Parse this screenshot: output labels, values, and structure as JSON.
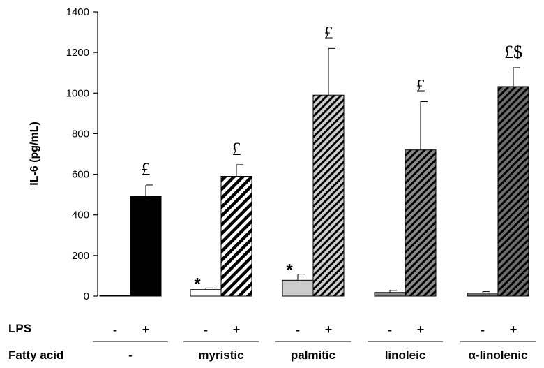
{
  "chart_data": {
    "type": "bar",
    "title": "",
    "xlabel": "",
    "ylabel": "IL-6 (pg/mL)",
    "ylim": [
      0,
      1400
    ],
    "yticks": [
      0,
      200,
      400,
      600,
      800,
      1000,
      1200,
      1400
    ],
    "grid": false,
    "row_labels": {
      "lps": "LPS",
      "fatty_acid": "Fatty acid"
    },
    "groups": [
      {
        "name": "-",
        "bars": [
          {
            "lps": "-",
            "value": 2,
            "error": 0,
            "annotation": ""
          },
          {
            "lps": "+",
            "value": 492,
            "error": 55,
            "annotation": "£"
          }
        ]
      },
      {
        "name": "myristic",
        "bars": [
          {
            "lps": "-",
            "value": 32,
            "error": 8,
            "annotation": "*"
          },
          {
            "lps": "+",
            "value": 590,
            "error": 57,
            "annotation": "£"
          }
        ]
      },
      {
        "name": "palmitic",
        "bars": [
          {
            "lps": "-",
            "value": 78,
            "error": 30,
            "annotation": "*"
          },
          {
            "lps": "+",
            "value": 990,
            "error": 230,
            "annotation": "£"
          }
        ]
      },
      {
        "name": "linoleic",
        "bars": [
          {
            "lps": "-",
            "value": 18,
            "error": 10,
            "annotation": ""
          },
          {
            "lps": "+",
            "value": 720,
            "error": 238,
            "annotation": "£"
          }
        ]
      },
      {
        "name": "α-linolenic",
        "bars": [
          {
            "lps": "-",
            "value": 15,
            "error": 7,
            "annotation": ""
          },
          {
            "lps": "+",
            "value": 1032,
            "error": 93,
            "annotation": "£$"
          }
        ]
      }
    ],
    "colors": {
      "control": "#000000",
      "myristic": "#ffffff",
      "palmitic": "#cccccc",
      "linoleic": "#8a8a8a",
      "linolenic": "#6e6e6e"
    }
  }
}
